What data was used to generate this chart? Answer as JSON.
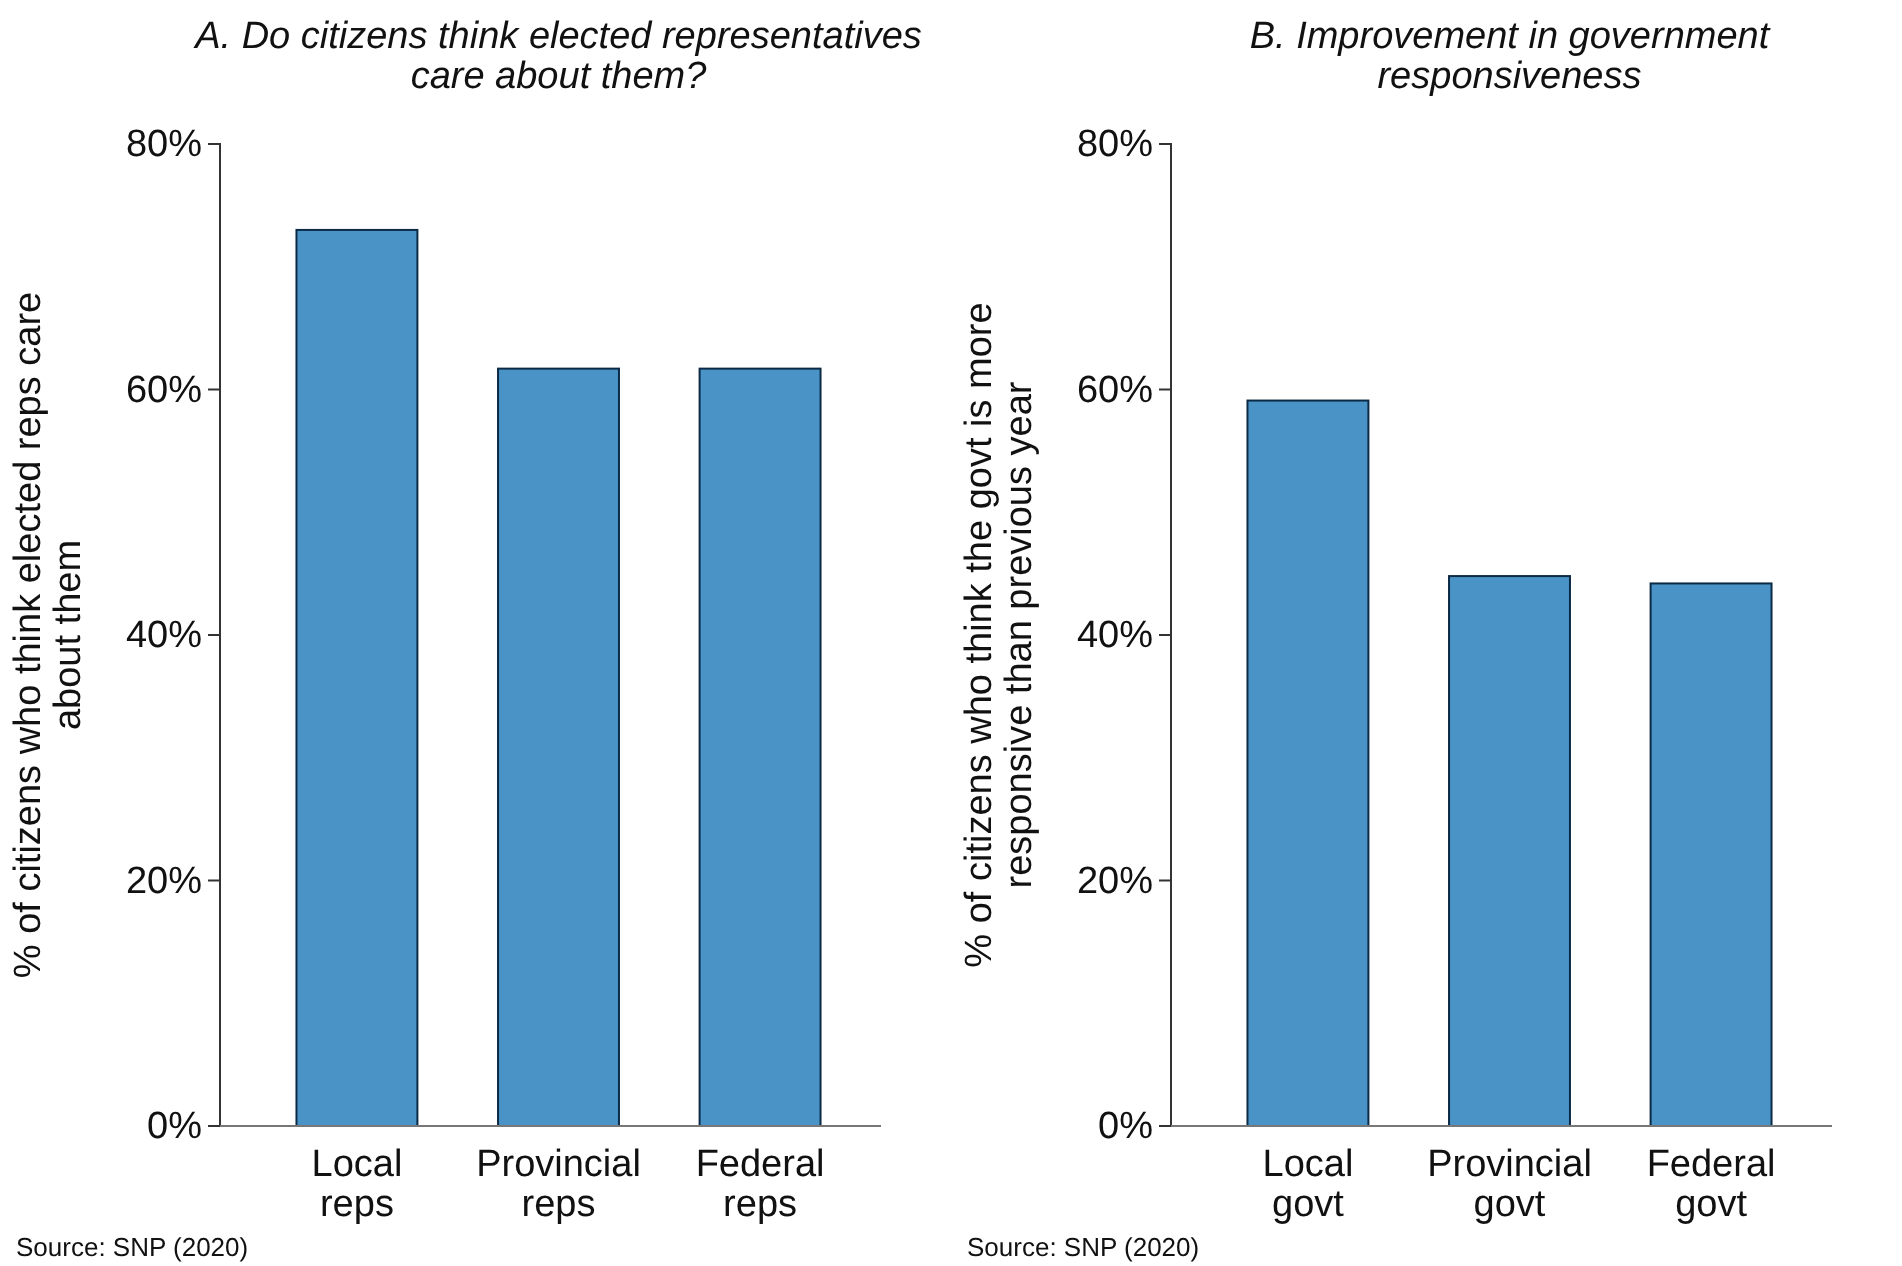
{
  "chart_data": [
    {
      "type": "bar",
      "title": "A. Do citizens think elected representatives care about them?",
      "ylabel": "% of citizens who think elected reps care about them",
      "categories": [
        "Local reps",
        "Provincial reps",
        "Federal reps"
      ],
      "values": [
        73,
        61.7,
        61.7
      ],
      "color": "#4a93c6",
      "ylim": [
        0,
        80
      ],
      "yticks": [
        {
          "value": 0,
          "label": "0%"
        },
        {
          "value": 20,
          "label": "20%"
        },
        {
          "value": 40,
          "label": "40%"
        },
        {
          "value": 60,
          "label": "60%"
        },
        {
          "value": 80,
          "label": "80%"
        }
      ],
      "grid": false,
      "annotations": [
        "Source: SNP (2020)"
      ]
    },
    {
      "type": "bar",
      "title": "B. Improvement in government responsiveness",
      "ylabel": "% of citizens who think the govt is more responsive than previous year",
      "categories": [
        "Local govt",
        "Provincial govt",
        "Federal govt"
      ],
      "values": [
        59.1,
        44.8,
        44.2
      ],
      "color": "#4a93c6",
      "ylim": [
        0,
        80
      ],
      "yticks": [
        {
          "value": 0,
          "label": "0%"
        },
        {
          "value": 20,
          "label": "20%"
        },
        {
          "value": 40,
          "label": "40%"
        },
        {
          "value": 60,
          "label": "60%"
        },
        {
          "value": 80,
          "label": "80%"
        }
      ],
      "grid": false,
      "annotations": [
        "Source: SNP (2020)"
      ]
    }
  ]
}
